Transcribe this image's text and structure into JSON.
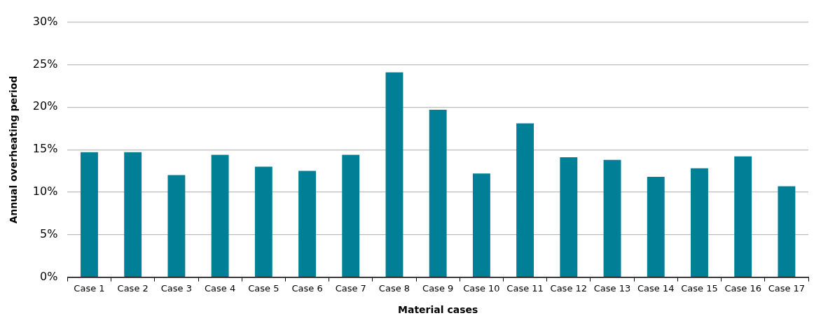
{
  "chart_data": {
    "type": "bar",
    "xlabel": "Material cases",
    "ylabel": "Annual overheating period",
    "categories": [
      "Case 1",
      "Case 2",
      "Case 3",
      "Case 4",
      "Case 5",
      "Case 6",
      "Case 7",
      "Case 8",
      "Case 9",
      "Case 10",
      "Case 11",
      "Case 12",
      "Case 13",
      "Case 14",
      "Case 15",
      "Case 16",
      "Case 17"
    ],
    "values": [
      14.7,
      14.7,
      12.0,
      14.4,
      13.0,
      12.5,
      14.4,
      24.1,
      19.7,
      12.2,
      18.1,
      14.1,
      13.8,
      11.8,
      12.8,
      14.2,
      10.7
    ],
    "color": "#007f96",
    "ylim": [
      0,
      30
    ],
    "yticks": [
      {
        "value": 0,
        "label": "0%"
      },
      {
        "value": 5,
        "label": "5%"
      },
      {
        "value": 10,
        "label": "10%"
      },
      {
        "value": 15,
        "label": "15%"
      },
      {
        "value": 20,
        "label": "20%"
      },
      {
        "value": 25,
        "label": "25%"
      },
      {
        "value": 30,
        "label": "30%"
      }
    ],
    "grid": "y",
    "legend": false
  }
}
